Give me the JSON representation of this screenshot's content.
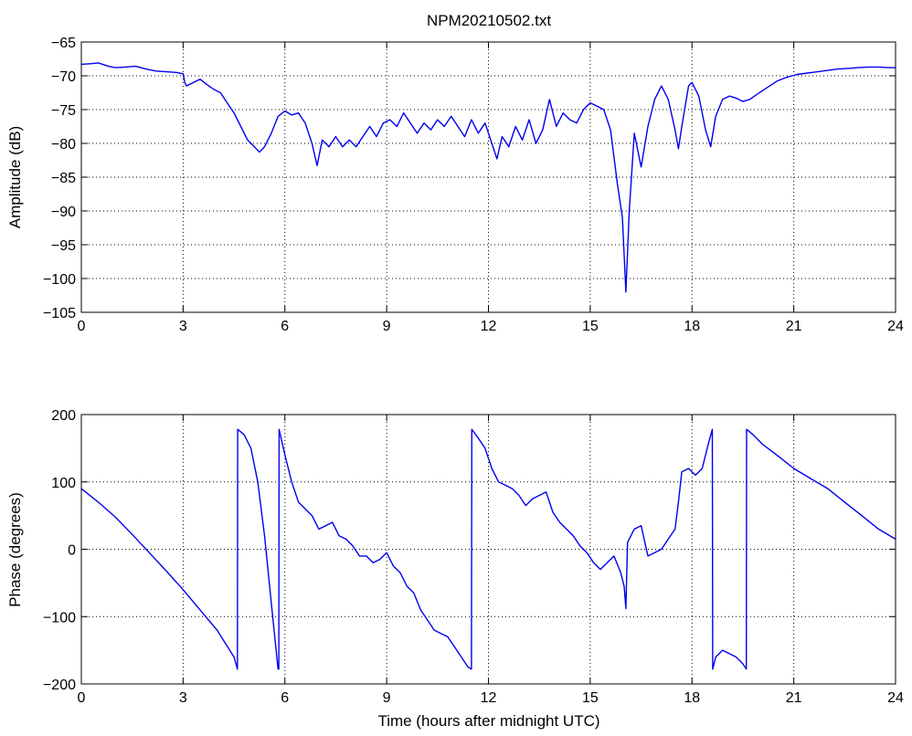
{
  "title": "NPM20210502.txt",
  "colors": {
    "series": "#0000ee",
    "axis": "#000000",
    "grid": "#000000",
    "background": "#ffffff"
  },
  "chart_data": [
    {
      "type": "line",
      "title": "NPM20210502.txt",
      "xlabel": "",
      "ylabel": "Amplitude (dB)",
      "xlim": [
        0,
        24
      ],
      "ylim": [
        -105,
        -65
      ],
      "xticks": [
        0,
        3,
        6,
        9,
        12,
        15,
        18,
        21,
        24
      ],
      "yticks": [
        -105,
        -100,
        -95,
        -90,
        -85,
        -80,
        -75,
        -70,
        -65
      ],
      "xtick_labels": [
        "0",
        "3",
        "6",
        "9",
        "12",
        "15",
        "18",
        "21",
        "24"
      ],
      "ytick_labels": [
        "−105",
        "−100",
        "−95",
        "−90",
        "−85",
        "−80",
        "−75",
        "−70",
        "−65"
      ],
      "grid": true,
      "series": [
        {
          "x": [
            0,
            0.3,
            0.5,
            0.8,
            1.0,
            1.3,
            1.6,
            1.9,
            2.2,
            2.5,
            2.8,
            3.0,
            3.05,
            3.1,
            3.3,
            3.5,
            3.7,
            3.9,
            4.1,
            4.3,
            4.5,
            4.7,
            4.9,
            5.1,
            5.25,
            5.4,
            5.6,
            5.8,
            6.0,
            6.2,
            6.4,
            6.6,
            6.8,
            6.95,
            7.1,
            7.3,
            7.5,
            7.7,
            7.9,
            8.1,
            8.3,
            8.5,
            8.7,
            8.9,
            9.1,
            9.3,
            9.5,
            9.7,
            9.9,
            10.1,
            10.3,
            10.5,
            10.7,
            10.9,
            11.1,
            11.3,
            11.5,
            11.7,
            11.9,
            12.1,
            12.25,
            12.4,
            12.6,
            12.8,
            13.0,
            13.2,
            13.4,
            13.6,
            13.8,
            14.0,
            14.2,
            14.4,
            14.6,
            14.8,
            15.0,
            15.2,
            15.4,
            15.6,
            15.8,
            15.95,
            16.05,
            16.15,
            16.3,
            16.5,
            16.7,
            16.9,
            17.1,
            17.3,
            17.5,
            17.6,
            17.7,
            17.9,
            18.0,
            18.2,
            18.4,
            18.55,
            18.7,
            18.9,
            19.1,
            19.3,
            19.5,
            19.7,
            19.9,
            20.2,
            20.5,
            20.8,
            21.1,
            21.4,
            21.7,
            22.0,
            22.3,
            22.6,
            22.9,
            23.2,
            23.5,
            23.8,
            24.0
          ],
          "y": [
            -68.3,
            -68.2,
            -68.1,
            -68.6,
            -68.8,
            -68.7,
            -68.6,
            -69.0,
            -69.3,
            -69.4,
            -69.5,
            -69.7,
            -71.0,
            -71.5,
            -71.0,
            -70.5,
            -71.3,
            -72.0,
            -72.5,
            -74.0,
            -75.5,
            -77.5,
            -79.5,
            -80.5,
            -81.3,
            -80.5,
            -78.5,
            -76.0,
            -75.2,
            -75.8,
            -75.5,
            -77.0,
            -80.0,
            -83.3,
            -79.5,
            -80.5,
            -79.0,
            -80.5,
            -79.5,
            -80.5,
            -79.0,
            -77.5,
            -79.0,
            -77.0,
            -76.5,
            -77.5,
            -75.5,
            -77.0,
            -78.5,
            -77.0,
            -78.0,
            -76.5,
            -77.5,
            -76.0,
            -77.5,
            -79.0,
            -76.5,
            -78.5,
            -77.0,
            -80.0,
            -82.3,
            -79.0,
            -80.5,
            -77.5,
            -79.5,
            -76.5,
            -80.0,
            -78.0,
            -73.5,
            -77.5,
            -75.5,
            -76.5,
            -77.0,
            -75.0,
            -74.0,
            -74.5,
            -75.0,
            -78.0,
            -86.0,
            -91.0,
            -102.0,
            -90.0,
            -78.5,
            -83.5,
            -77.5,
            -73.5,
            -71.5,
            -73.5,
            -78.0,
            -80.8,
            -77.5,
            -71.5,
            -71.0,
            -73.0,
            -78.0,
            -80.5,
            -76.0,
            -73.5,
            -73.0,
            -73.3,
            -73.8,
            -73.5,
            -72.8,
            -71.8,
            -70.8,
            -70.2,
            -69.8,
            -69.6,
            -69.4,
            -69.2,
            -69.0,
            -68.9,
            -68.8,
            -68.7,
            -68.7,
            -68.8,
            -68.8
          ]
        }
      ]
    },
    {
      "type": "line",
      "title": "",
      "xlabel": "Time (hours after midnight UTC)",
      "ylabel": "Phase (degrees)",
      "xlim": [
        0,
        24
      ],
      "ylim": [
        -200,
        200
      ],
      "xticks": [
        0,
        3,
        6,
        9,
        12,
        15,
        18,
        21,
        24
      ],
      "yticks": [
        -200,
        -100,
        0,
        100,
        200
      ],
      "xtick_labels": [
        "0",
        "3",
        "6",
        "9",
        "12",
        "15",
        "18",
        "21",
        "24"
      ],
      "ytick_labels": [
        "−200",
        "−100",
        "0",
        "100",
        "200"
      ],
      "grid": true,
      "series": [
        {
          "x": [
            0,
            0.5,
            1.0,
            1.5,
            2.0,
            2.5,
            3.0,
            3.5,
            4.0,
            4.5,
            4.6,
            4.61,
            4.8,
            5.0,
            5.2,
            5.4,
            5.6,
            5.8,
            5.82,
            5.83,
            6.0,
            6.2,
            6.4,
            6.6,
            6.8,
            7.0,
            7.2,
            7.4,
            7.6,
            7.8,
            8.0,
            8.2,
            8.4,
            8.6,
            8.8,
            9.0,
            9.2,
            9.4,
            9.6,
            9.8,
            10.0,
            10.2,
            10.4,
            10.6,
            10.8,
            11.0,
            11.2,
            11.4,
            11.5,
            11.51,
            11.7,
            11.9,
            12.1,
            12.3,
            12.5,
            12.7,
            12.9,
            13.1,
            13.3,
            13.5,
            13.7,
            13.9,
            14.1,
            14.3,
            14.5,
            14.7,
            14.9,
            15.1,
            15.3,
            15.5,
            15.7,
            15.9,
            16.0,
            16.05,
            16.1,
            16.3,
            16.5,
            16.7,
            16.9,
            17.1,
            17.3,
            17.5,
            17.6,
            17.7,
            17.9,
            18.1,
            18.3,
            18.5,
            18.6,
            18.61,
            18.7,
            18.9,
            19.1,
            19.3,
            19.5,
            19.6,
            19.61,
            19.8,
            20.1,
            20.5,
            21.0,
            21.5,
            22.0,
            22.5,
            23.0,
            23.5,
            24.0
          ],
          "y": [
            90,
            70,
            48,
            22,
            -5,
            -32,
            -60,
            -90,
            -120,
            -160,
            -178,
            178,
            170,
            150,
            100,
            20,
            -80,
            -178,
            -178,
            178,
            140,
            100,
            70,
            60,
            50,
            30,
            35,
            40,
            20,
            15,
            5,
            -10,
            -10,
            -20,
            -15,
            -5,
            -25,
            -35,
            -55,
            -65,
            -90,
            -105,
            -120,
            -125,
            -130,
            -145,
            -160,
            -175,
            -178,
            178,
            165,
            150,
            120,
            100,
            95,
            90,
            80,
            65,
            75,
            80,
            85,
            55,
            40,
            30,
            20,
            5,
            -5,
            -20,
            -30,
            -20,
            -10,
            -35,
            -55,
            -88,
            10,
            30,
            35,
            -10,
            -5,
            0,
            15,
            30,
            70,
            115,
            120,
            110,
            120,
            160,
            178,
            -178,
            -160,
            -150,
            -155,
            -160,
            -170,
            -178,
            178,
            170,
            155,
            140,
            120,
            105,
            90,
            70,
            50,
            30,
            15
          ]
        }
      ]
    }
  ]
}
